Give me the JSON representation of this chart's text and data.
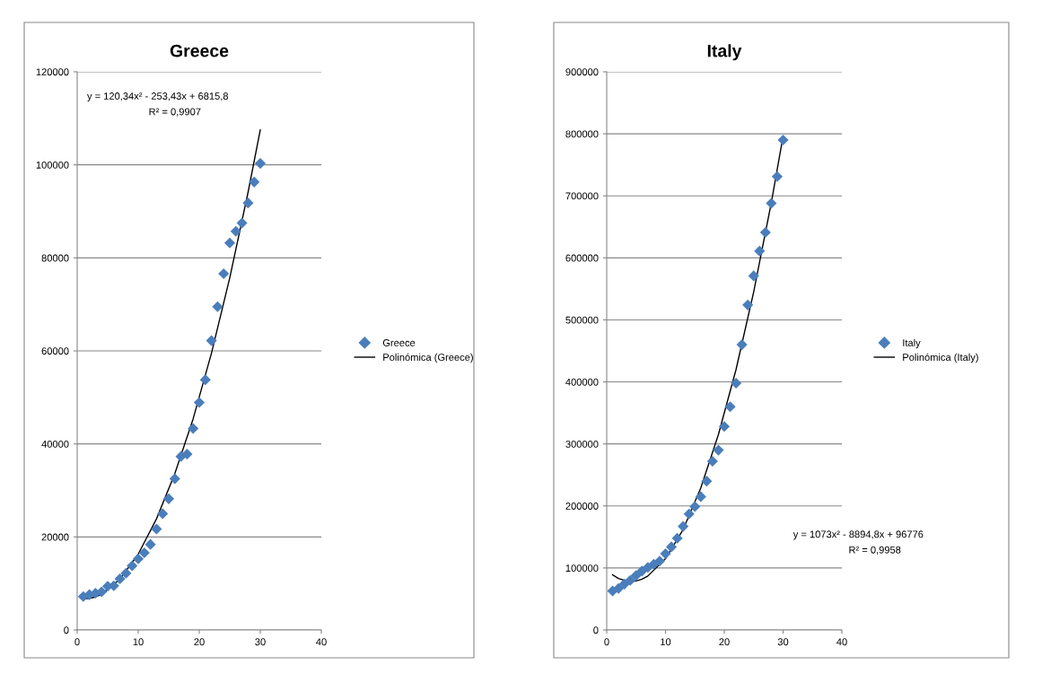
{
  "chart_data": [
    {
      "type": "scatter",
      "title": "Greece",
      "x": [
        1,
        2,
        3,
        4,
        5,
        6,
        7,
        8,
        9,
        10,
        11,
        12,
        13,
        14,
        15,
        16,
        17,
        18,
        19,
        20,
        21,
        22,
        23,
        24,
        25,
        26,
        27,
        28,
        29,
        30
      ],
      "xlim": [
        0,
        40
      ],
      "xticks": [
        0,
        10,
        20,
        30,
        40
      ],
      "ylim": [
        0,
        120000
      ],
      "yticks": [
        0,
        20000,
        40000,
        60000,
        80000,
        100000,
        120000
      ],
      "grid": "y",
      "legend": "right",
      "series": [
        {
          "name": "Greece",
          "marker": "diamond",
          "color": "#4a7ebb",
          "values": [
            7200,
            7600,
            7900,
            8200,
            9400,
            9500,
            11000,
            12200,
            13800,
            15300,
            16600,
            18400,
            21700,
            25000,
            28200,
            32500,
            37300,
            37800,
            43300,
            48900,
            53800,
            62200,
            69500,
            76600,
            83200,
            85700,
            87500,
            91800,
            96300,
            100300
          ]
        },
        {
          "name": "Polinómica (Greece)",
          "type": "line",
          "marker": "none",
          "color": "#000000",
          "x": [
            1,
            2,
            3,
            4,
            7,
            10,
            13,
            16,
            19,
            22,
            25,
            28,
            30
          ],
          "values": [
            6700,
            6800,
            7100,
            7700,
            10900,
            16300,
            23900,
            33600,
            45400,
            59500,
            75700,
            94100,
            107500
          ]
        }
      ],
      "annotations": [
        "y = 120,34x² - 253,43x + 6815,8",
        "R² = 0,9907"
      ]
    },
    {
      "type": "scatter",
      "title": "Italy",
      "x": [
        1,
        2,
        3,
        4,
        5,
        6,
        7,
        8,
        9,
        10,
        11,
        12,
        13,
        14,
        15,
        16,
        17,
        18,
        19,
        20,
        21,
        22,
        23,
        24,
        25,
        26,
        27,
        28,
        29,
        30
      ],
      "xlim": [
        0,
        40
      ],
      "xticks": [
        0,
        10,
        20,
        30,
        40
      ],
      "ylim": [
        0,
        900000
      ],
      "yticks": [
        0,
        100000,
        200000,
        300000,
        400000,
        500000,
        600000,
        700000,
        800000,
        900000
      ],
      "grid": "y",
      "legend": "right",
      "series": [
        {
          "name": "Italy",
          "marker": "diamond",
          "color": "#4a7ebb",
          "values": [
            63000,
            67000,
            74000,
            80000,
            88000,
            95000,
            101000,
            106000,
            111000,
            123000,
            134000,
            148000,
            167000,
            187000,
            199000,
            215000,
            240000,
            272000,
            290000,
            328000,
            360000,
            398000,
            460000,
            524000,
            571000,
            611000,
            641000,
            688000,
            731000,
            790000
          ]
        },
        {
          "name": "Polinómica (Italy)",
          "type": "line",
          "marker": "none",
          "color": "#000000",
          "x": [
            1,
            2,
            3,
            4,
            5,
            6,
            7,
            10,
            13,
            16,
            19,
            22,
            25,
            28,
            30
          ],
          "values": [
            89000,
            83000,
            80000,
            78000,
            79000,
            82000,
            87000,
            115000,
            162000,
            229000,
            315000,
            420000,
            545000,
            689000,
            796000
          ]
        }
      ],
      "annotations": [
        "y = 1073x² - 8894,8x + 96776",
        "R² = 0,9958"
      ]
    }
  ]
}
